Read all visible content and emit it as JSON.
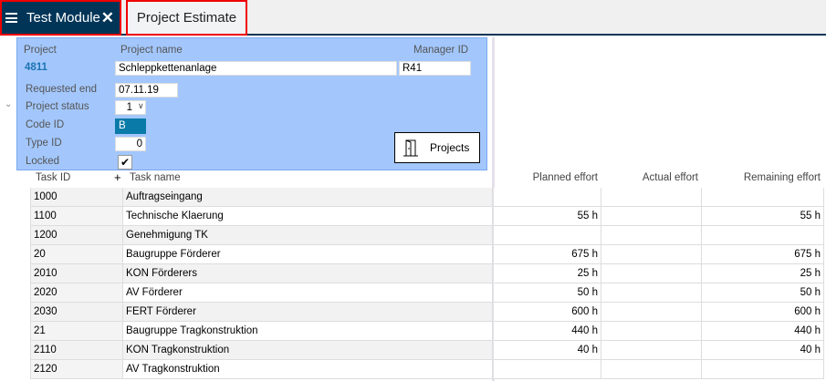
{
  "tabs": {
    "module": "Test Module",
    "active": "Project Estimate"
  },
  "form": {
    "project_label": "Project",
    "project_value": "4811",
    "project_name_label": "Project name",
    "project_name_value": "Schleppkettenanlage",
    "manager_label": "Manager ID",
    "manager_value": "R41",
    "requested_end_label": "Requested end",
    "requested_end_value": "07.11.19",
    "status_label": "Project status",
    "status_value": "1",
    "code_label": "Code ID",
    "code_value": "B",
    "type_label": "Type ID",
    "type_value": "0",
    "locked_label": "Locked",
    "locked_checked": true,
    "projects_button": "Projects"
  },
  "table": {
    "headers": [
      "Task ID",
      "Task name",
      "Planned effort",
      "Actual effort",
      "Remaining effort"
    ],
    "add_symbol": "+",
    "rows": [
      [
        "1000",
        "Auftragseingang",
        "",
        "",
        ""
      ],
      [
        "1100",
        "Technische Klaerung",
        "55 h",
        "",
        "55 h"
      ],
      [
        "1200",
        "Genehmigung TK",
        "",
        "",
        ""
      ],
      [
        "20",
        "Baugruppe Förderer",
        "675 h",
        "",
        "675 h"
      ],
      [
        "2010",
        "KON Förderers",
        "25 h",
        "",
        "25 h"
      ],
      [
        "2020",
        "AV Förderer",
        "50 h",
        "",
        "50 h"
      ],
      [
        "2030",
        "FERT Förderer",
        "600 h",
        "",
        "600 h"
      ],
      [
        "21",
        "Baugruppe Tragkonstruktion",
        "440 h",
        "",
        "440 h"
      ],
      [
        "2110",
        "KON Tragkonstruktion",
        "40 h",
        "",
        "40 h"
      ],
      [
        "2120",
        "AV Tragkonstruktion",
        "",
        "",
        ""
      ]
    ]
  },
  "colors": {
    "tab_dark": "#003558",
    "panel": "#a3c7fc",
    "code_bg": "#0a7aa8",
    "highlight_border": "#ee0000"
  }
}
